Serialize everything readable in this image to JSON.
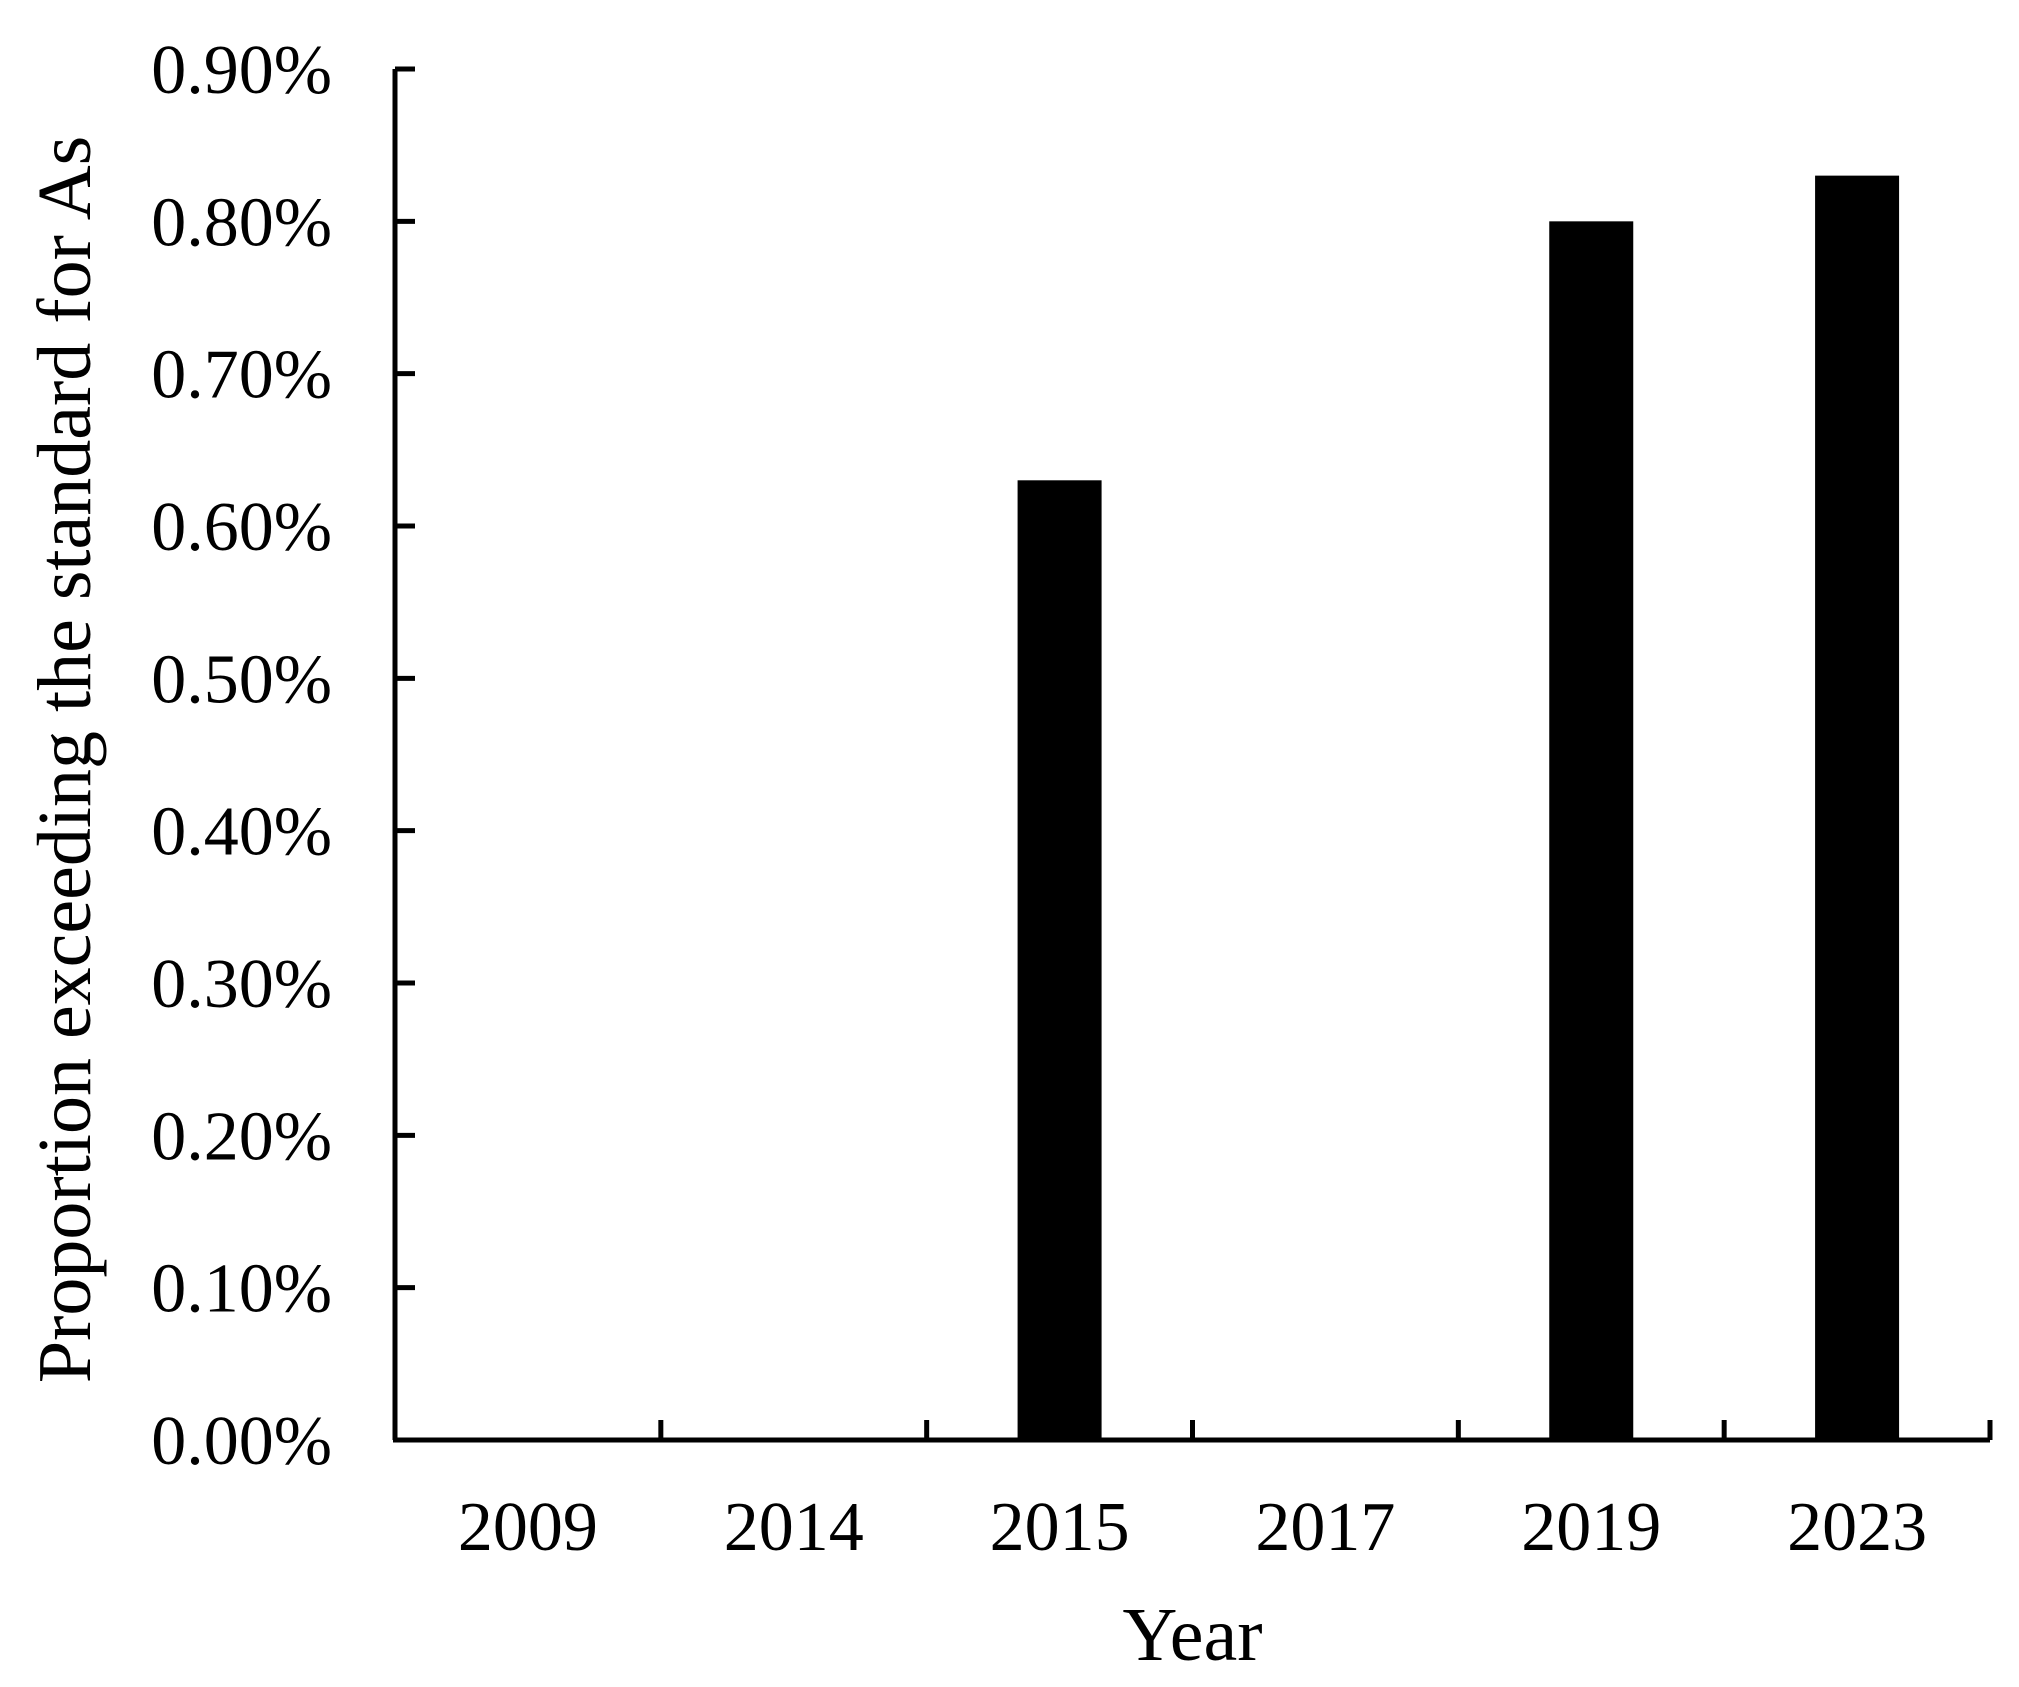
{
  "chart_data": {
    "type": "bar",
    "categories": [
      "2009",
      "2014",
      "2015",
      "2017",
      "2019",
      "2023"
    ],
    "values": [
      0,
      0,
      0.63,
      0,
      0.8,
      0.83
    ],
    "value_unit": "%",
    "title": "",
    "xlabel": "Year",
    "ylabel": "Proportion exceeding the standard for As",
    "ylim": [
      0,
      0.9
    ],
    "yticks": [
      0,
      0.1,
      0.2,
      0.3,
      0.4,
      0.5,
      0.6,
      0.7,
      0.8,
      0.9
    ],
    "ytick_labels": [
      "0.00%",
      "0.10%",
      "0.20%",
      "0.30%",
      "0.40%",
      "0.50%",
      "0.60%",
      "0.70%",
      "0.80%",
      "0.90%"
    ],
    "grid": false,
    "legend": "none",
    "bar_color": "#000000"
  }
}
